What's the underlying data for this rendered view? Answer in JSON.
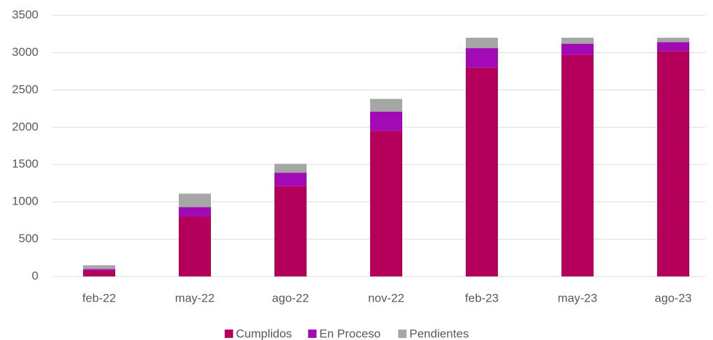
{
  "chart_data": {
    "type": "stacked_bar",
    "categories": [
      "feb-22",
      "may-22",
      "ago-22",
      "nov-22",
      "feb-23",
      "may-23",
      "ago-23"
    ],
    "series": [
      {
        "name": "Cumplidos",
        "color": "#b5005b",
        "values": [
          80,
          800,
          1210,
          1950,
          2800,
          2970,
          3020
        ]
      },
      {
        "name": "En Proceso",
        "color": "#a10ab5",
        "values": [
          20,
          130,
          180,
          260,
          260,
          150,
          120
        ]
      },
      {
        "name": "Pendientes",
        "color": "#a6a6a6",
        "values": [
          50,
          180,
          120,
          170,
          140,
          80,
          60
        ]
      }
    ],
    "ylim": [
      0,
      3500
    ],
    "yticks": [
      0,
      500,
      1000,
      1500,
      2000,
      2500,
      3000,
      3500
    ],
    "grid": true,
    "legend": "bottom"
  }
}
